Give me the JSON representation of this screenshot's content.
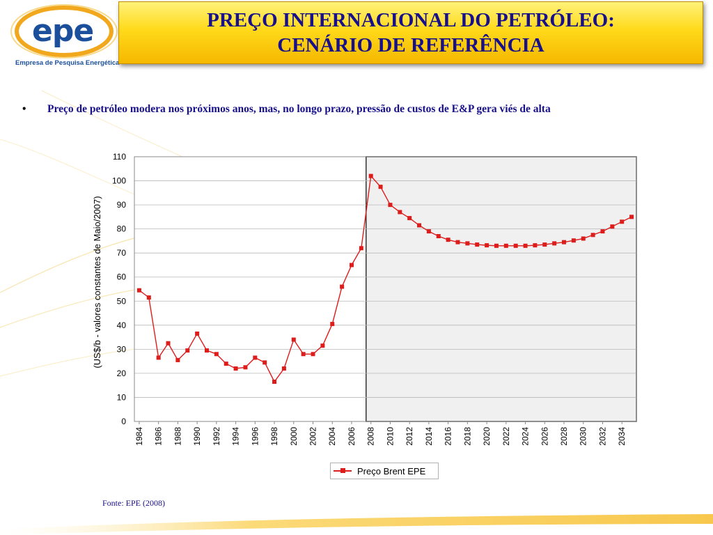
{
  "logo": {
    "text": "epe",
    "subtitle": "Empresa de Pesquisa Energética"
  },
  "title": {
    "line1": "PREÇO INTERNACIONAL DO PETRÓLEO:",
    "line2": "CENÁRIO DE REFERÊNCIA"
  },
  "bullet": {
    "symbol": "•",
    "text": "Preço de petróleo modera nos próximos anos, mas, no longo prazo, pressão de custos de E&P gera viés de alta"
  },
  "source": "Fonte: EPE (2008)",
  "colors": {
    "title_text": "#17108a",
    "title_background": "#ffd91a",
    "series": "#dd1c1c",
    "forecast_shade": "#f0f0f0"
  },
  "chart_data": {
    "type": "line",
    "title": "",
    "xlabel": "",
    "ylabel": "(US$/b - valores constantes de Maio/2007)",
    "ylim": [
      0,
      110
    ],
    "xlim": [
      1984,
      2035
    ],
    "yticks": [
      0,
      10,
      20,
      30,
      40,
      50,
      60,
      70,
      80,
      90,
      100,
      110
    ],
    "xticks": [
      1984,
      1986,
      1988,
      1990,
      1992,
      1994,
      1996,
      1998,
      2000,
      2002,
      2004,
      2006,
      2008,
      2010,
      2012,
      2014,
      2016,
      2018,
      2020,
      2022,
      2024,
      2026,
      2028,
      2030,
      2032,
      2034
    ],
    "grid": "horizontal",
    "legend_position": "bottom",
    "shaded_region": {
      "from": 2008,
      "to": 2035
    },
    "series": [
      {
        "name": "Preço Brent EPE",
        "color": "#dd1c1c",
        "x": [
          1984,
          1985,
          1986,
          1987,
          1988,
          1989,
          1990,
          1991,
          1992,
          1993,
          1994,
          1995,
          1996,
          1997,
          1998,
          1999,
          2000,
          2001,
          2002,
          2003,
          2004,
          2005,
          2006,
          2007,
          2008,
          2009,
          2010,
          2011,
          2012,
          2013,
          2014,
          2015,
          2016,
          2017,
          2018,
          2019,
          2020,
          2021,
          2022,
          2023,
          2024,
          2025,
          2026,
          2027,
          2028,
          2029,
          2030,
          2031,
          2032,
          2033,
          2034,
          2035
        ],
        "values": [
          54.5,
          51.5,
          26.5,
          32.5,
          25.5,
          29.5,
          36.5,
          29.5,
          28,
          24,
          22,
          22.5,
          26.5,
          24.5,
          16.5,
          22,
          34,
          28,
          28,
          31.5,
          40.5,
          56,
          65,
          72,
          102,
          97.5,
          90,
          87,
          84.5,
          81.5,
          79,
          77,
          75.5,
          74.5,
          74,
          73.5,
          73.2,
          73,
          73,
          73,
          73,
          73.2,
          73.5,
          74,
          74.5,
          75.2,
          76,
          77.5,
          79,
          81,
          83,
          85
        ]
      }
    ]
  }
}
